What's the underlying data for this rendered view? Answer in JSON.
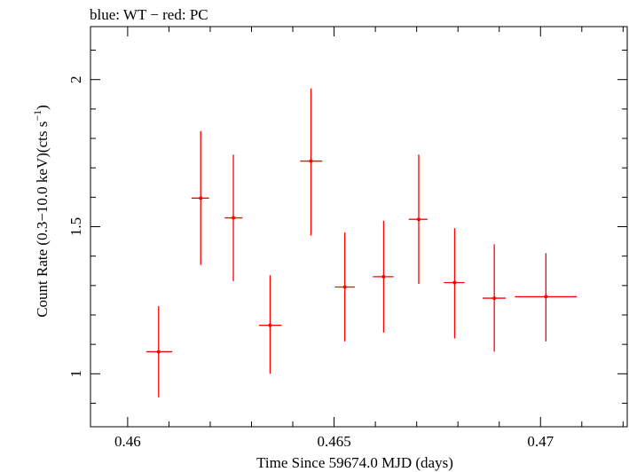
{
  "chart_data": {
    "type": "scatter",
    "title": "blue: WT − red: PC",
    "xlabel": "Time Since 59674.0 MJD (days)",
    "ylabel_main": "Count Rate (0.3−10.0 keV)(cts s",
    "ylabel_sup": "−1",
    "ylabel_end": ")",
    "xlim": [
      0.4591,
      0.4721
    ],
    "ylim": [
      0.82,
      2.18
    ],
    "xticks": [
      0.46,
      0.465,
      0.47
    ],
    "xtick_labels": [
      "0.46",
      "0.465",
      "0.47"
    ],
    "yticks": [
      1,
      1.5,
      2
    ],
    "ytick_labels": [
      "1",
      "1.5",
      "2"
    ],
    "grid": false,
    "colors": {
      "pc": "#ff0000",
      "axis": "#000000"
    },
    "series": [
      {
        "name": "PC",
        "points": [
          {
            "x": 0.46075,
            "xlo": 0.46045,
            "xhi": 0.46108,
            "y": 1.075,
            "ylo": 0.92,
            "yhi": 1.23
          },
          {
            "x": 0.46177,
            "xlo": 0.46155,
            "xhi": 0.46197,
            "y": 1.597,
            "ylo": 1.37,
            "yhi": 1.825
          },
          {
            "x": 0.46256,
            "xlo": 0.46235,
            "xhi": 0.46278,
            "y": 1.53,
            "ylo": 1.315,
            "yhi": 1.745
          },
          {
            "x": 0.46345,
            "xlo": 0.46318,
            "xhi": 0.46373,
            "y": 1.165,
            "ylo": 1.0,
            "yhi": 1.335
          },
          {
            "x": 0.46444,
            "xlo": 0.46418,
            "xhi": 0.46471,
            "y": 1.723,
            "ylo": 1.47,
            "yhi": 1.97
          },
          {
            "x": 0.46526,
            "xlo": 0.46502,
            "xhi": 0.4655,
            "y": 1.295,
            "ylo": 1.11,
            "yhi": 1.48
          },
          {
            "x": 0.4662,
            "xlo": 0.46594,
            "xhi": 0.46644,
            "y": 1.33,
            "ylo": 1.14,
            "yhi": 1.52
          },
          {
            "x": 0.46705,
            "xlo": 0.46681,
            "xhi": 0.46726,
            "y": 1.525,
            "ylo": 1.305,
            "yhi": 1.745
          },
          {
            "x": 0.46792,
            "xlo": 0.46766,
            "xhi": 0.46816,
            "y": 1.31,
            "ylo": 1.12,
            "yhi": 1.495
          },
          {
            "x": 0.46888,
            "xlo": 0.4686,
            "xhi": 0.46916,
            "y": 1.257,
            "ylo": 1.075,
            "yhi": 1.44
          },
          {
            "x": 0.47013,
            "xlo": 0.46938,
            "xhi": 0.47088,
            "y": 1.262,
            "ylo": 1.11,
            "yhi": 1.41
          }
        ]
      }
    ]
  }
}
